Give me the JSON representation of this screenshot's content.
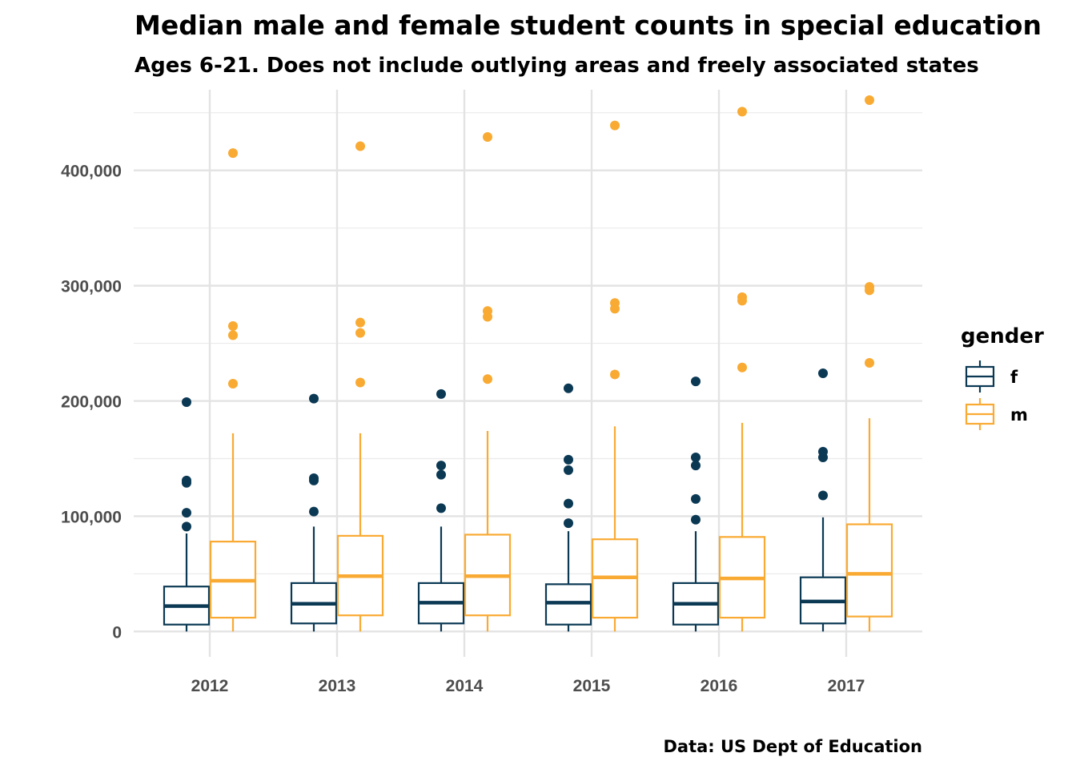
{
  "chart_data": {
    "type": "box",
    "title": "Median male and female student counts in special education",
    "subtitle": "Ages 6-21. Does not include outlying areas and freely associated states",
    "caption": "Data: US Dept of Education",
    "xlabel": "",
    "ylabel": "",
    "categories": [
      "2012",
      "2013",
      "2014",
      "2015",
      "2016",
      "2017"
    ],
    "ylim": [
      -22000,
      470000
    ],
    "y_ticks": [
      0,
      100000,
      200000,
      300000,
      400000
    ],
    "y_tick_labels": [
      "0",
      "100,000",
      "200,000",
      "300,000",
      "400,000"
    ],
    "grid": true,
    "legend": {
      "title": "gender",
      "position": "right"
    },
    "series": [
      {
        "name": "f",
        "color": "#0b3954",
        "boxes": [
          {
            "min": 0,
            "q1": 6000,
            "median": 22000,
            "q3": 39000,
            "max": 85000,
            "outliers": [
              91000,
              103000,
              129000,
              131000,
              199000
            ]
          },
          {
            "min": 0,
            "q1": 7000,
            "median": 24000,
            "q3": 42000,
            "max": 91000,
            "outliers": [
              104000,
              131000,
              133000,
              202000
            ]
          },
          {
            "min": 0,
            "q1": 7000,
            "median": 25000,
            "q3": 42000,
            "max": 91000,
            "outliers": [
              107000,
              136000,
              144000,
              206000
            ]
          },
          {
            "min": 0,
            "q1": 6000,
            "median": 25000,
            "q3": 41000,
            "max": 87000,
            "outliers": [
              94000,
              111000,
              140000,
              149000,
              211000
            ]
          },
          {
            "min": 0,
            "q1": 6000,
            "median": 24000,
            "q3": 42000,
            "max": 87000,
            "outliers": [
              97000,
              115000,
              144000,
              151000,
              217000
            ]
          },
          {
            "min": 0,
            "q1": 7000,
            "median": 26000,
            "q3": 47000,
            "max": 99000,
            "outliers": [
              118000,
              151000,
              156000,
              224000
            ]
          }
        ]
      },
      {
        "name": "m",
        "color": "#f9aa33",
        "boxes": [
          {
            "min": 0,
            "q1": 12000,
            "median": 44000,
            "q3": 78000,
            "max": 172000,
            "outliers": [
              215000,
              257000,
              265000,
              415000
            ]
          },
          {
            "min": 0,
            "q1": 14000,
            "median": 48000,
            "q3": 83000,
            "max": 172000,
            "outliers": [
              216000,
              259000,
              268000,
              421000
            ]
          },
          {
            "min": 0,
            "q1": 14000,
            "median": 48000,
            "q3": 84000,
            "max": 174000,
            "outliers": [
              219000,
              273000,
              278000,
              429000
            ]
          },
          {
            "min": 0,
            "q1": 12000,
            "median": 47000,
            "q3": 80000,
            "max": 178000,
            "outliers": [
              223000,
              280000,
              285000,
              439000
            ]
          },
          {
            "min": 0,
            "q1": 12000,
            "median": 46000,
            "q3": 82000,
            "max": 181000,
            "outliers": [
              229000,
              287000,
              290000,
              451000
            ]
          },
          {
            "min": 0,
            "q1": 13000,
            "median": 50000,
            "q3": 93000,
            "max": 185000,
            "outliers": [
              233000,
              296000,
              299000,
              461000
            ]
          }
        ]
      }
    ]
  }
}
